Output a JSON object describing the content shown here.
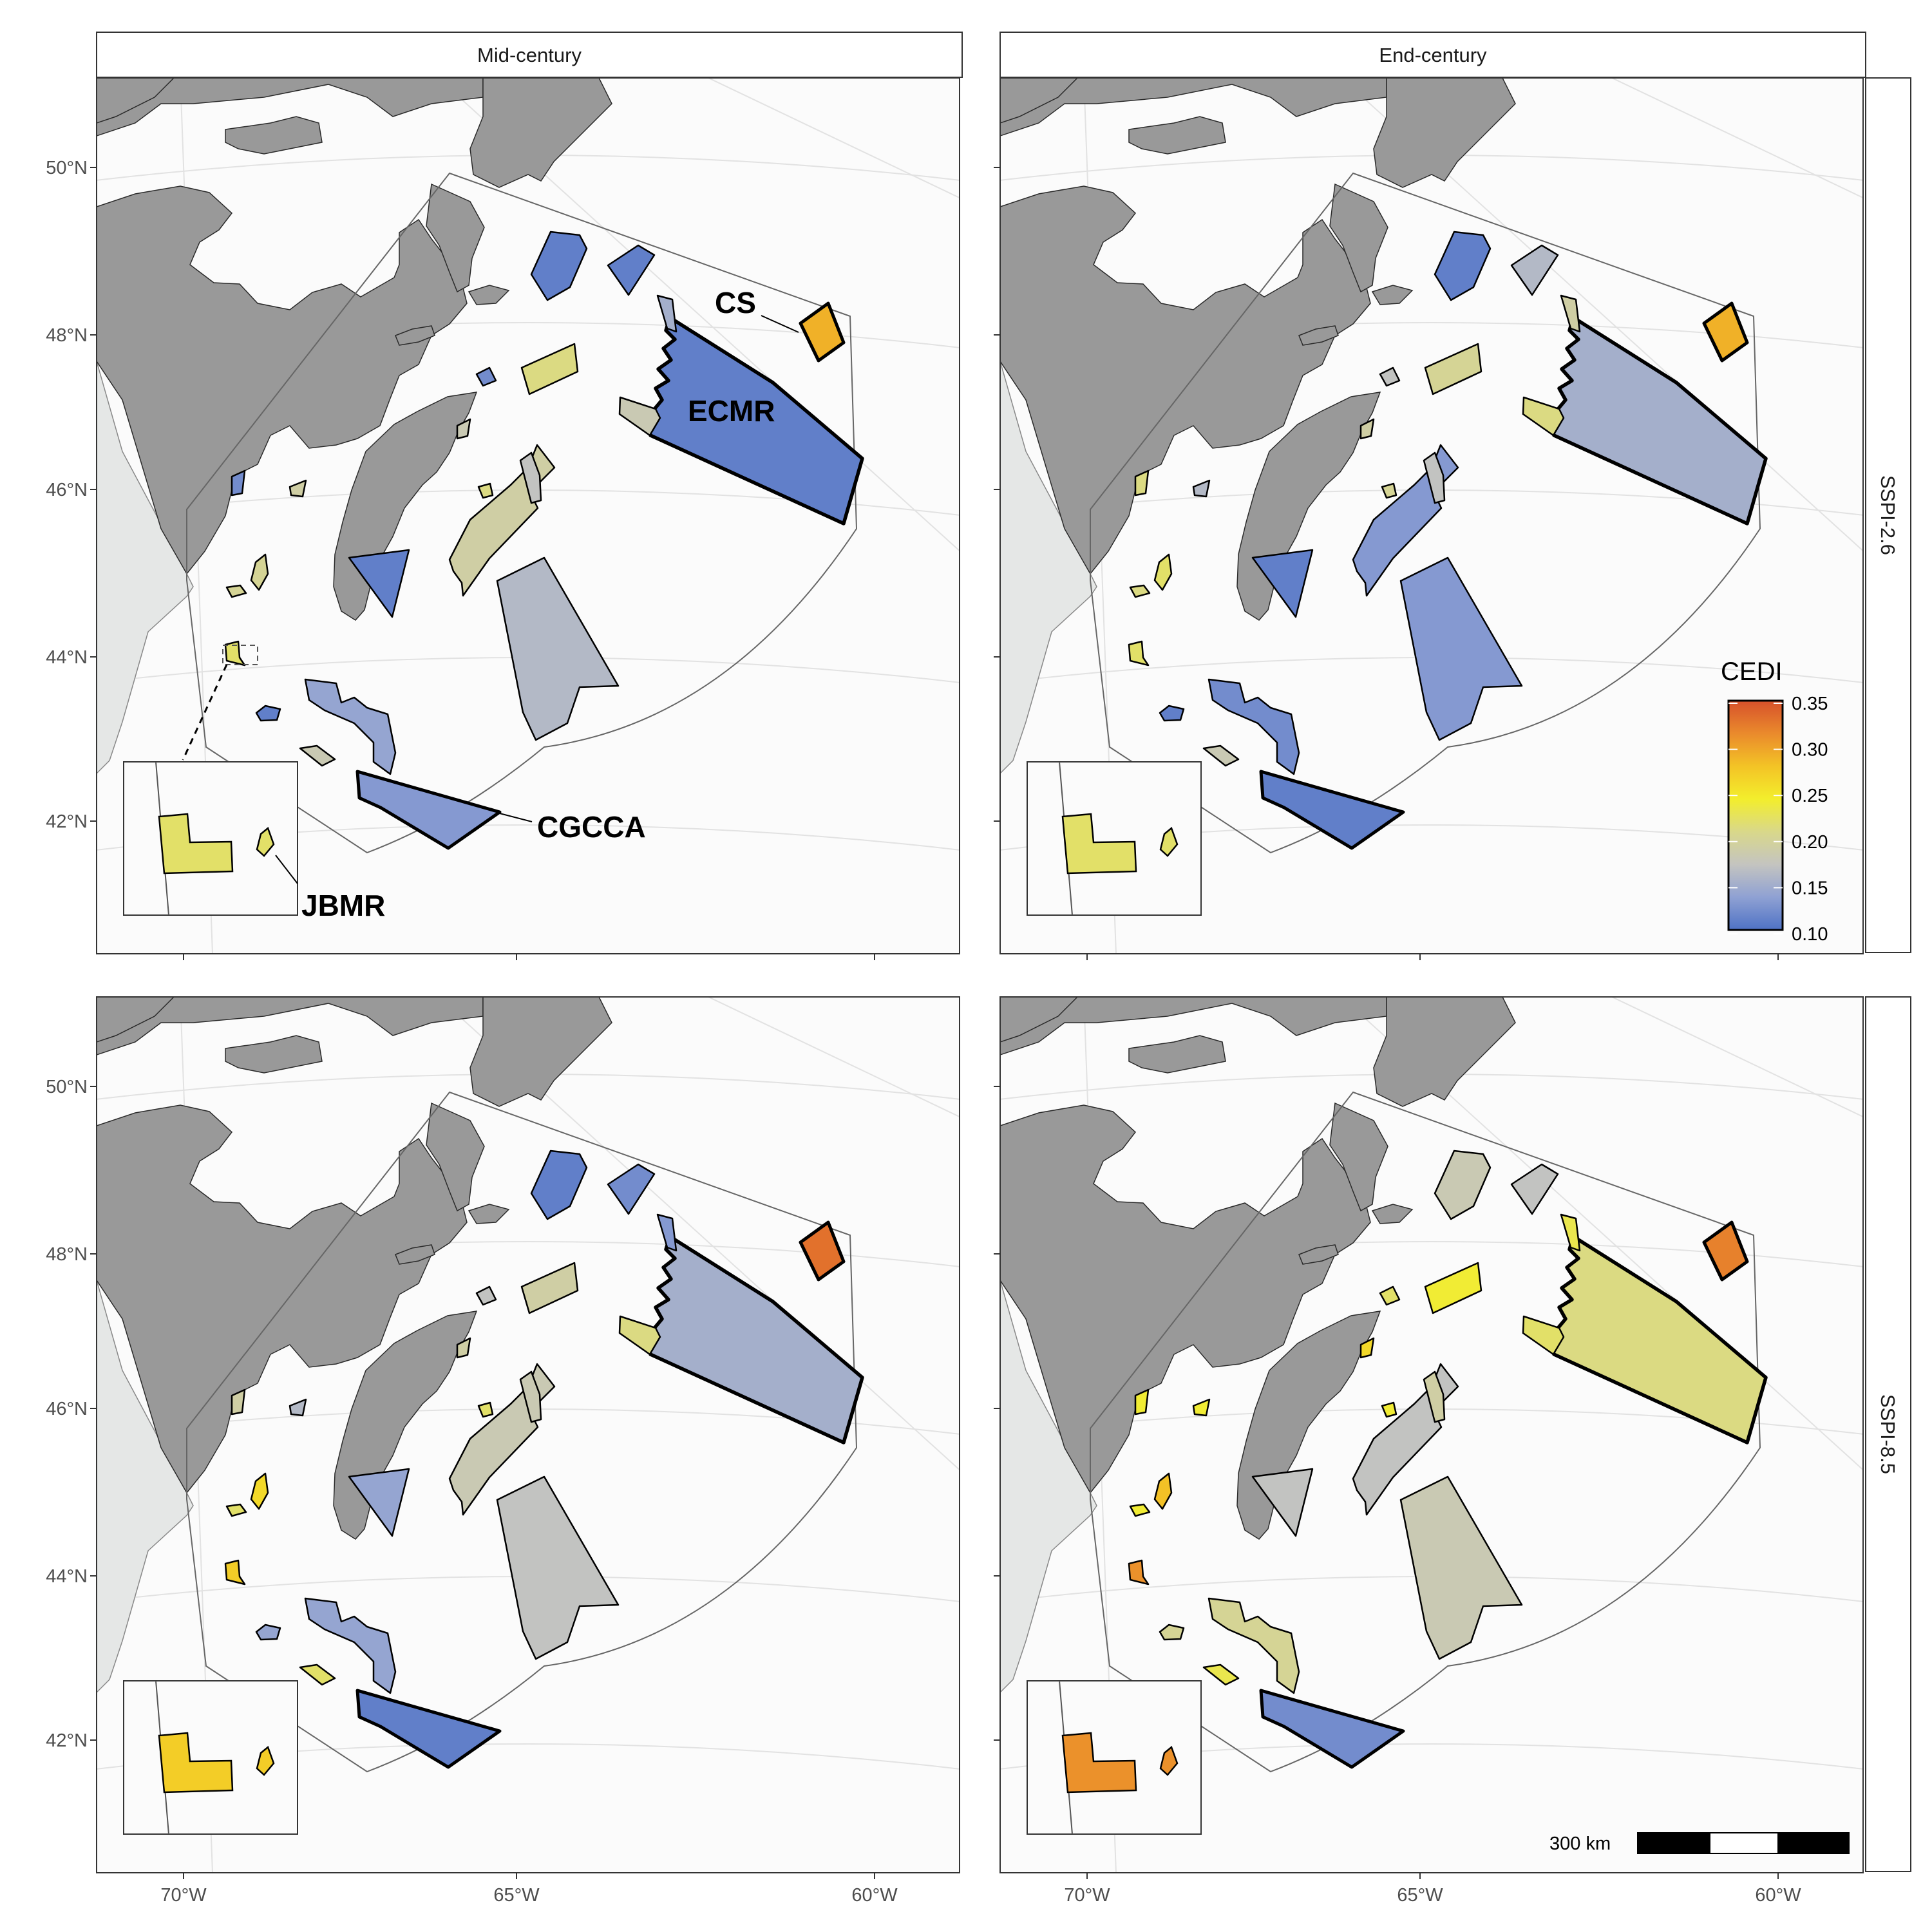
{
  "columns": [
    "Mid-century",
    "End-century"
  ],
  "rows": [
    "SSPI-2.6",
    "SSPI-8.5"
  ],
  "axes": {
    "x_ticks": [
      "70°W",
      "65°W",
      "60°W"
    ],
    "y_ticks": [
      "50°N",
      "48°N",
      "46°N",
      "44°N",
      "42°N"
    ]
  },
  "legend": {
    "title": "CEDI",
    "ticks": [
      "0.35",
      "0.30",
      "0.25",
      "0.20",
      "0.15",
      "0.10"
    ],
    "min": 0.1,
    "max": 0.35,
    "colors": [
      "#4f72c5",
      "#8fa1d3",
      "#c4c4c0",
      "#d9d88a",
      "#f3ee2c",
      "#f3c326",
      "#ea8a2c",
      "#d7512b"
    ]
  },
  "callouts": {
    "cs": "CS",
    "ecmr": "ECMR",
    "cgcca": "CGCCA",
    "jbmr": "JBMR"
  },
  "scale_bar": {
    "label": "300 km"
  },
  "colors": {
    "land": "#999999",
    "us_land": "#e5e7e6",
    "panel_bg": "#fbfbfb",
    "blue": "#4f72c5",
    "orange": "#e58e2e",
    "red": "#d7512b",
    "yellow": "#f3ee2c"
  },
  "cedi_values": {
    "mid_126": {
      "ecmr": 0.11,
      "cgcca": 0.13,
      "cs": 0.29,
      "nw1": 0.11,
      "nw2": 0.11,
      "nw3": 0.15,
      "lauv": 0.21,
      "gully": 0.18,
      "sb": 0.19,
      "slope": 0.16,
      "wedge": 0.17,
      "tri": 0.11,
      "sw1": 0.14,
      "sw2": 0.11,
      "sw3": 0.18,
      "jbmr": 0.22,
      "c1": 0.2,
      "c2": 0.2,
      "c3": 0.12,
      "c4": 0.19,
      "sm1": 0.18,
      "cape": 0.21,
      "bays": 0.12
    },
    "end_126": {
      "ecmr": 0.15,
      "cgcca": 0.11,
      "cs": 0.29,
      "nw1": 0.11,
      "nw2": 0.16,
      "nw3": 0.19,
      "lauv": 0.2,
      "gully": 0.21,
      "sb": 0.13,
      "slope": 0.13,
      "wedge": 0.17,
      "tri": 0.11,
      "sw1": 0.12,
      "sw2": 0.11,
      "sw3": 0.18,
      "jbmr": 0.22,
      "c1": 0.21,
      "c2": 0.22,
      "c3": 0.21,
      "c4": 0.16,
      "sm1": 0.19,
      "cape": 0.2,
      "bays": 0.17
    },
    "mid_585": {
      "ecmr": 0.15,
      "cgcca": 0.11,
      "cs": 0.33,
      "nw1": 0.11,
      "nw2": 0.12,
      "nw3": 0.13,
      "lauv": 0.19,
      "gully": 0.21,
      "sb": 0.18,
      "slope": 0.17,
      "wedge": 0.18,
      "tri": 0.14,
      "sw1": 0.14,
      "sw2": 0.14,
      "sw3": 0.22,
      "jbmr": 0.27,
      "c1": 0.22,
      "c2": 0.26,
      "c3": 0.19,
      "c4": 0.16,
      "sm1": 0.19,
      "cape": 0.22,
      "bays": 0.17
    },
    "end_585": {
      "ecmr": 0.21,
      "cgcca": 0.12,
      "cs": 0.32,
      "nw1": 0.18,
      "nw2": 0.17,
      "nw3": 0.23,
      "lauv": 0.24,
      "gully": 0.22,
      "sb": 0.17,
      "slope": 0.18,
      "wedge": 0.19,
      "tri": 0.17,
      "sw1": 0.2,
      "sw2": 0.2,
      "sw3": 0.23,
      "jbmr": 0.31,
      "c1": 0.24,
      "c2": 0.28,
      "c3": 0.24,
      "c4": 0.24,
      "sm1": 0.26,
      "cape": 0.24,
      "bays": 0.22
    }
  }
}
